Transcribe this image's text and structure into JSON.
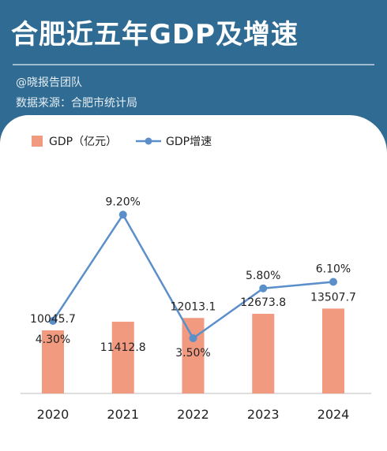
{
  "header": {
    "title": "合肥近五年GDP及增速",
    "author": "@晓报告团队",
    "source": "数据来源：合肥市统计局"
  },
  "colors": {
    "background": "#2f6b92",
    "bar": "#f29a80",
    "line": "#5b8fca"
  },
  "chart_data": {
    "type": "bar",
    "categories": [
      "2020",
      "2021",
      "2022",
      "2023",
      "2024"
    ],
    "series": [
      {
        "name": "GDP（亿元）",
        "type": "bar",
        "values": [
          10045.7,
          11412.8,
          12013.1,
          12673.8,
          13507.7
        ],
        "labels": [
          "10045.7",
          "11412.8",
          "12013.1",
          "12673.8",
          "13507.7"
        ]
      },
      {
        "name": "GDP增速",
        "type": "line",
        "values": [
          4.3,
          9.2,
          3.5,
          5.8,
          6.1
        ],
        "labels": [
          "4.30%",
          "9.20%",
          "3.50%",
          "5.80%",
          "6.10%"
        ]
      }
    ],
    "legend": "top-left",
    "grid": false
  }
}
